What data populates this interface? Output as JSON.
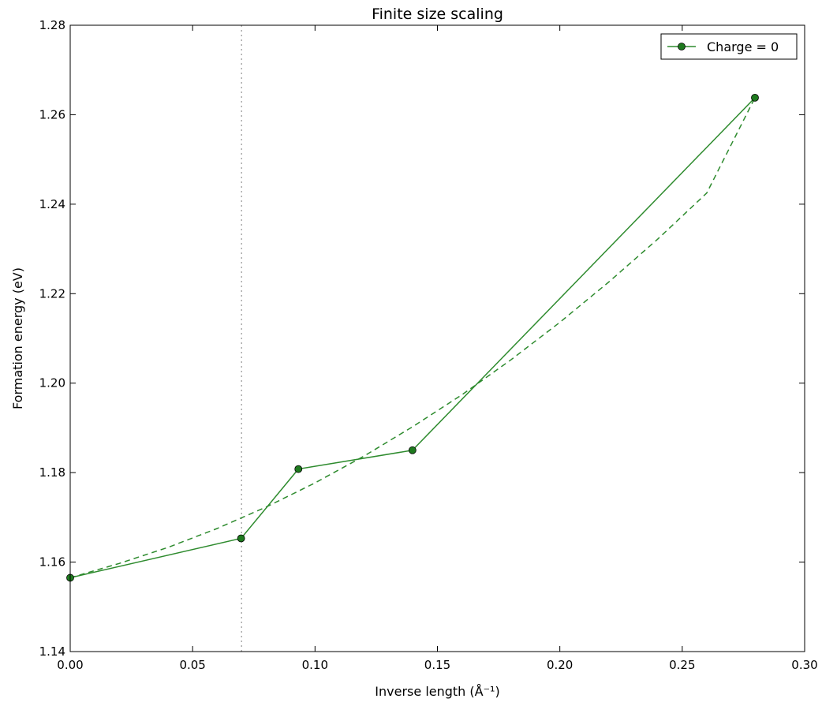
{
  "chart_data": {
    "type": "line",
    "title": "Finite size scaling",
    "xlabel": "Inverse length (Å⁻¹)",
    "ylabel": "Formation energy (eV)",
    "xlim": [
      0.0,
      0.3
    ],
    "ylim": [
      1.14,
      1.28
    ],
    "xticks": [
      "0.00",
      "0.05",
      "0.10",
      "0.15",
      "0.20",
      "0.25",
      "0.30"
    ],
    "yticks": [
      "1.14",
      "1.16",
      "1.18",
      "1.20",
      "1.22",
      "1.24",
      "1.26",
      "1.28"
    ],
    "grid": false,
    "legend_position": "upper right",
    "series": [
      {
        "name": "Charge = 0",
        "color": "#2e8b2e",
        "marker": "circle",
        "linestyle": "solid",
        "x": [
          0.0,
          0.0698,
          0.0932,
          0.1398,
          0.2797
        ],
        "y": [
          1.1565,
          1.1653,
          1.1808,
          1.185,
          1.2638
        ]
      },
      {
        "color": "#2e8b2e",
        "linestyle": "dashed",
        "marker": "none",
        "x": [
          0.0,
          0.02,
          0.04,
          0.06,
          0.08,
          0.1,
          0.12,
          0.14,
          0.16,
          0.18,
          0.2,
          0.22,
          0.24,
          0.26,
          0.2797
        ],
        "y": [
          1.1565,
          1.1597,
          1.1633,
          1.1675,
          1.1723,
          1.1777,
          1.1837,
          1.1903,
          1.1974,
          1.2052,
          1.2136,
          1.2226,
          1.2322,
          1.2425,
          1.2638
        ]
      }
    ],
    "vline": {
      "x": 0.07,
      "style": "dotted",
      "color": "#aaaaaa"
    }
  }
}
